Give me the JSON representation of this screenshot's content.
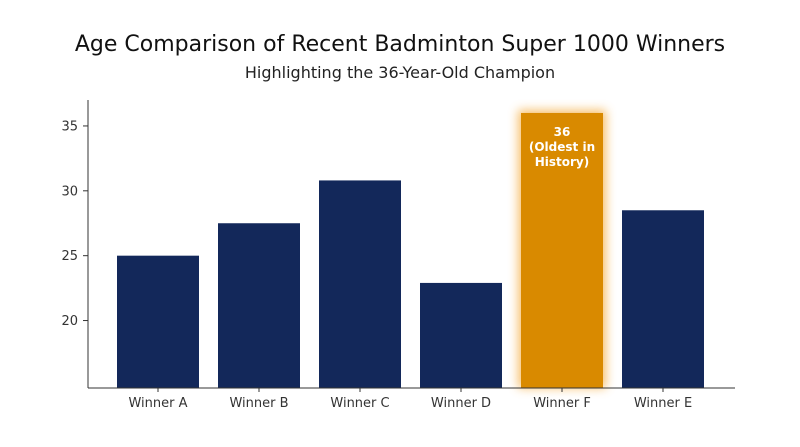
{
  "chart_data": {
    "type": "bar",
    "title": "Age Comparison of Recent Badminton Super 1000 Winners",
    "subtitle": "Highlighting the 36-Year-Old Champion",
    "xlabel": "",
    "ylabel": "",
    "categories": [
      "Winner A",
      "Winner B",
      "Winner C",
      "Winner D",
      "Winner F",
      "Winner E"
    ],
    "values": [
      25,
      27.5,
      30.8,
      22.9,
      36,
      28.5
    ],
    "ylim": [
      14.8,
      37
    ],
    "yticks": [
      20,
      25,
      30,
      35
    ],
    "highlight_index": 4,
    "highlight_label_lines": [
      "36",
      "(Oldest in",
      "History)"
    ],
    "grid": false,
    "colors": {
      "bar": "#13285a",
      "highlight": "#d98a00",
      "highlight_glow": "#f5b04a",
      "axis": "#333333"
    }
  }
}
